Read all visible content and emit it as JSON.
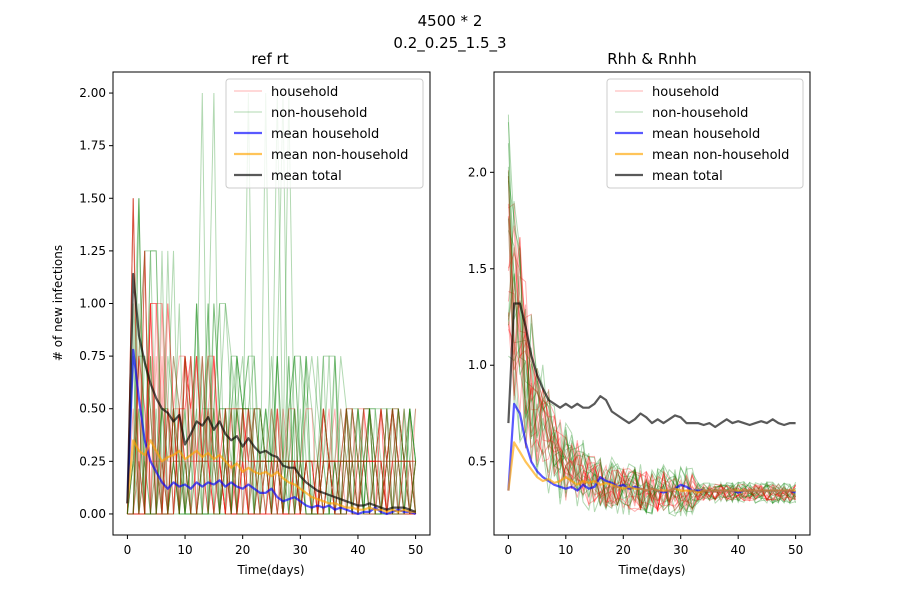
{
  "figure": {
    "title_line1": "4500 * 2",
    "title_line2": "0.2_0.25_1.5_3"
  },
  "colors": {
    "household": "#ff0000",
    "non_household": "#008000",
    "mean_household": "#0000ff",
    "mean_non_household": "#ffa500",
    "mean_total": "#000000"
  },
  "chart_data": [
    {
      "type": "line",
      "title": "ref rt",
      "xlabel": "Time(days)",
      "ylabel": "# of new infections",
      "xlim": [
        -2.5,
        52.5
      ],
      "ylim": [
        -0.1,
        2.1
      ],
      "xticks": [
        0,
        10,
        20,
        30,
        40,
        50
      ],
      "yticks": [
        0.0,
        0.25,
        0.5,
        0.75,
        1.0,
        1.25,
        1.5,
        1.75,
        2.0
      ],
      "ytick_labels": [
        "0.00",
        "0.25",
        "0.50",
        "0.75",
        "1.00",
        "1.25",
        "1.50",
        "1.75",
        "2.00"
      ],
      "grid": false,
      "legend_position": "upper right",
      "legend": [
        "household",
        "non-household",
        "mean household",
        "mean non-household",
        "mean total"
      ],
      "x": [
        0,
        1,
        2,
        3,
        4,
        5,
        6,
        7,
        8,
        9,
        10,
        11,
        12,
        13,
        14,
        15,
        16,
        17,
        18,
        19,
        20,
        21,
        22,
        23,
        24,
        25,
        26,
        27,
        28,
        29,
        30,
        31,
        32,
        33,
        34,
        35,
        36,
        37,
        38,
        39,
        40,
        41,
        42,
        43,
        44,
        45,
        46,
        47,
        48,
        49,
        50
      ],
      "series": [
        {
          "name": "mean household",
          "values": [
            0.05,
            0.78,
            0.55,
            0.35,
            0.25,
            0.2,
            0.15,
            0.12,
            0.15,
            0.13,
            0.14,
            0.12,
            0.15,
            0.13,
            0.15,
            0.14,
            0.16,
            0.13,
            0.15,
            0.13,
            0.12,
            0.14,
            0.12,
            0.1,
            0.1,
            0.12,
            0.08,
            0.06,
            0.07,
            0.08,
            0.06,
            0.04,
            0.03,
            0.04,
            0.03,
            0.04,
            0.02,
            0.03,
            0.02,
            0.01,
            0.0,
            0.01,
            0.01,
            0.03,
            0.01,
            0.0,
            0.01,
            0.02,
            0.01,
            0.01,
            0.0
          ]
        },
        {
          "name": "mean non-household",
          "values": [
            0.05,
            0.35,
            0.3,
            0.28,
            0.35,
            0.3,
            0.25,
            0.27,
            0.28,
            0.3,
            0.26,
            0.28,
            0.3,
            0.27,
            0.29,
            0.26,
            0.28,
            0.25,
            0.22,
            0.24,
            0.2,
            0.22,
            0.2,
            0.19,
            0.2,
            0.18,
            0.2,
            0.17,
            0.15,
            0.14,
            0.12,
            0.1,
            0.08,
            0.07,
            0.06,
            0.05,
            0.05,
            0.04,
            0.03,
            0.03,
            0.02,
            0.02,
            0.03,
            0.02,
            0.02,
            0.01,
            0.02,
            0.01,
            0.02,
            0.01,
            0.01
          ]
        },
        {
          "name": "mean total",
          "values": [
            0.05,
            1.14,
            0.85,
            0.72,
            0.62,
            0.55,
            0.5,
            0.48,
            0.44,
            0.47,
            0.33,
            0.38,
            0.44,
            0.42,
            0.46,
            0.4,
            0.44,
            0.38,
            0.35,
            0.37,
            0.32,
            0.36,
            0.32,
            0.29,
            0.3,
            0.28,
            0.27,
            0.23,
            0.22,
            0.22,
            0.18,
            0.15,
            0.13,
            0.11,
            0.1,
            0.09,
            0.08,
            0.07,
            0.06,
            0.05,
            0.04,
            0.04,
            0.05,
            0.04,
            0.03,
            0.02,
            0.03,
            0.03,
            0.03,
            0.02,
            0.01
          ]
        }
      ]
    },
    {
      "type": "line",
      "title": "Rhh & Rnhh",
      "xlabel": "Time(days)",
      "ylabel": "",
      "xlim": [
        -2.5,
        52.5
      ],
      "ylim": [
        0.12,
        2.52
      ],
      "xticks": [
        0,
        10,
        20,
        30,
        40,
        50
      ],
      "yticks": [
        0.5,
        1.0,
        1.5,
        2.0
      ],
      "ytick_labels": [
        "0.5",
        "1.0",
        "1.5",
        "2.0"
      ],
      "grid": false,
      "legend_position": "upper right",
      "legend": [
        "household",
        "non-household",
        "mean household",
        "mean non-household",
        "mean total"
      ],
      "x": [
        0,
        1,
        2,
        3,
        4,
        5,
        6,
        7,
        8,
        9,
        10,
        11,
        12,
        13,
        14,
        15,
        16,
        17,
        18,
        19,
        20,
        21,
        22,
        23,
        24,
        25,
        26,
        27,
        28,
        29,
        30,
        31,
        32,
        33,
        34,
        35,
        36,
        37,
        38,
        39,
        40,
        41,
        42,
        43,
        44,
        45,
        46,
        47,
        48,
        49,
        50
      ],
      "series": [
        {
          "name": "mean household",
          "values": [
            0.35,
            0.8,
            0.75,
            0.6,
            0.5,
            0.45,
            0.42,
            0.4,
            0.38,
            0.37,
            0.36,
            0.37,
            0.35,
            0.38,
            0.36,
            0.37,
            0.42,
            0.4,
            0.39,
            0.37,
            0.38,
            0.36,
            0.37,
            0.36,
            0.35,
            0.36,
            0.35,
            0.34,
            0.35,
            0.36,
            0.38,
            0.37,
            0.35,
            0.35,
            0.35,
            0.35,
            0.35,
            0.35,
            0.35,
            0.35,
            0.34,
            0.35,
            0.35,
            0.35,
            0.35,
            0.35,
            0.35,
            0.35,
            0.35,
            0.35,
            0.34
          ]
        },
        {
          "name": "mean non-household",
          "values": [
            0.35,
            0.6,
            0.55,
            0.5,
            0.46,
            0.42,
            0.4,
            0.41,
            0.39,
            0.4,
            0.42,
            0.4,
            0.38,
            0.4,
            0.39,
            0.4,
            0.38,
            0.39,
            0.38,
            0.37,
            0.36,
            0.37,
            0.36,
            0.36,
            0.35,
            0.36,
            0.35,
            0.35,
            0.35,
            0.36,
            0.35,
            0.35,
            0.35,
            0.34,
            0.35,
            0.35,
            0.35,
            0.35,
            0.35,
            0.35,
            0.35,
            0.35,
            0.35,
            0.35,
            0.35,
            0.35,
            0.35,
            0.35,
            0.35,
            0.35,
            0.35
          ]
        },
        {
          "name": "mean total",
          "values": [
            0.7,
            1.32,
            1.32,
            1.2,
            1.05,
            0.95,
            0.88,
            0.82,
            0.8,
            0.78,
            0.8,
            0.78,
            0.8,
            0.78,
            0.78,
            0.8,
            0.84,
            0.82,
            0.76,
            0.74,
            0.72,
            0.7,
            0.72,
            0.75,
            0.73,
            0.7,
            0.72,
            0.7,
            0.72,
            0.74,
            0.73,
            0.7,
            0.7,
            0.7,
            0.69,
            0.7,
            0.68,
            0.7,
            0.72,
            0.7,
            0.71,
            0.7,
            0.69,
            0.7,
            0.71,
            0.7,
            0.72,
            0.7,
            0.69,
            0.7,
            0.7
          ]
        }
      ]
    }
  ]
}
